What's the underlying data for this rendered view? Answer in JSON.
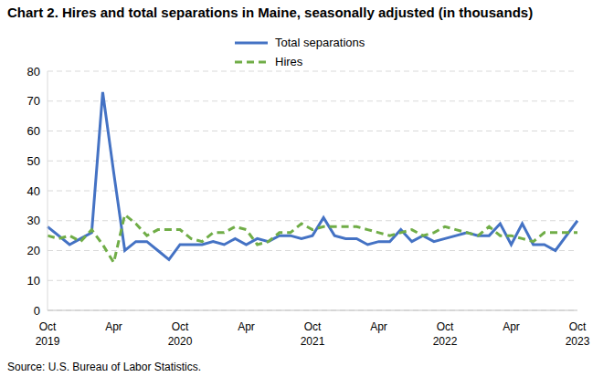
{
  "chart_data": {
    "type": "line",
    "title": "Chart 2. Hires and total separations in Maine, seasonally adjusted (in thousands)",
    "source": "Source: U.S. Bureau of Labor Statistics.",
    "categories": [
      "Oct 2019",
      null,
      null,
      null,
      null,
      null,
      "Apr",
      null,
      null,
      null,
      null,
      null,
      "Oct 2020",
      null,
      null,
      null,
      null,
      null,
      "Apr",
      null,
      null,
      null,
      null,
      null,
      "Oct 2021",
      null,
      null,
      null,
      null,
      null,
      "Apr",
      null,
      null,
      null,
      null,
      null,
      "Oct 2022",
      null,
      null,
      null,
      null,
      null,
      "Apr",
      null,
      null,
      null,
      null,
      null,
      "Oct 2023"
    ],
    "series": [
      {
        "name": "Total separations",
        "color": "#4472c4",
        "line_style": "solid",
        "values": [
          28,
          25,
          22,
          24,
          26,
          73,
          46,
          20,
          23,
          23,
          20,
          17,
          22,
          22,
          22,
          23,
          22,
          24,
          22,
          24,
          23,
          25,
          25,
          24,
          25,
          31,
          25,
          24,
          24,
          22,
          23,
          23,
          27,
          23,
          25,
          23,
          24,
          25,
          26,
          25,
          25,
          29,
          22,
          29,
          22,
          22,
          20,
          25,
          30
        ]
      },
      {
        "name": "Hires",
        "color": "#70ad47",
        "line_style": "dashed",
        "values": [
          25,
          24,
          25,
          23,
          27,
          22,
          16,
          32,
          29,
          25,
          27,
          27,
          27,
          24,
          23,
          26,
          26,
          28,
          27,
          22,
          23,
          26,
          26,
          29,
          27,
          28,
          28,
          28,
          28,
          27,
          26,
          25,
          26,
          27,
          25,
          26,
          28,
          27,
          26,
          25,
          28,
          25,
          25,
          24,
          23,
          26,
          26,
          26,
          26
        ]
      }
    ],
    "ylim": [
      0,
      80
    ],
    "yticks": [
      0,
      10,
      20,
      30,
      40,
      50,
      60,
      70,
      80
    ],
    "grid": true,
    "legend": "top"
  }
}
